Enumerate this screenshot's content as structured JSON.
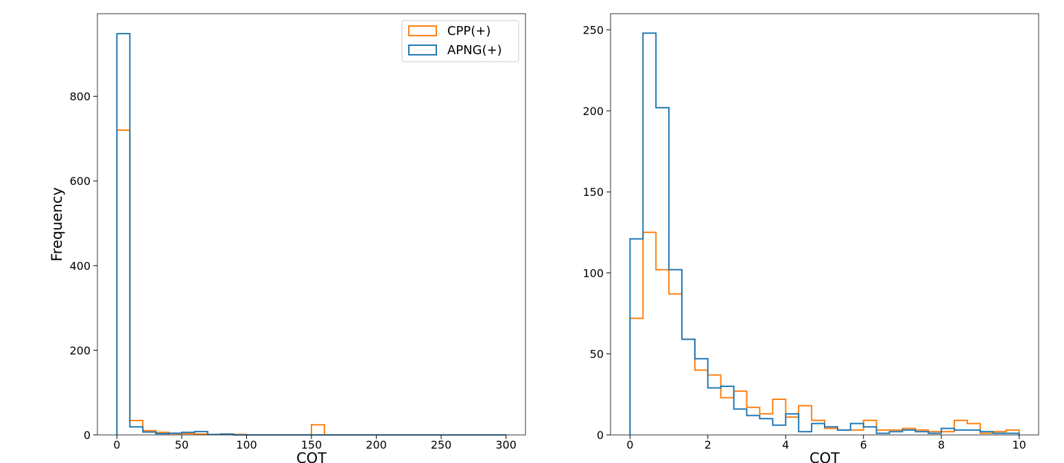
{
  "chart_data": [
    {
      "type": "histogram",
      "xlabel": "COT",
      "ylabel": "Frequency",
      "xlim": [
        -15,
        315
      ],
      "ylim": [
        0,
        995
      ],
      "xticks": [
        0,
        50,
        100,
        150,
        200,
        250,
        300
      ],
      "yticks": [
        0,
        200,
        400,
        600,
        800
      ],
      "bin_edges": [
        0,
        10,
        20,
        30,
        40,
        50,
        60,
        70,
        80,
        90,
        100,
        110,
        120,
        130,
        140,
        150,
        160,
        170,
        180,
        190,
        200,
        210,
        220,
        230,
        240,
        250,
        260,
        270,
        280,
        290,
        300
      ],
      "legend": {
        "position": "upper right",
        "entries": [
          "CPP(+)",
          "APNG(+)"
        ]
      },
      "series": [
        {
          "name": "CPP(+)",
          "color": "#ff7f0e",
          "values": [
            720,
            34,
            10,
            6,
            3,
            3,
            2,
            1,
            2,
            1,
            0,
            0,
            0,
            0,
            0,
            24,
            0,
            0,
            0,
            0,
            0,
            0,
            0,
            0,
            0,
            0,
            0,
            0,
            0,
            0
          ]
        },
        {
          "name": "APNG(+)",
          "color": "#1f77b4",
          "values": [
            948,
            19,
            7,
            3,
            4,
            6,
            8,
            1,
            2,
            0,
            0,
            0,
            0,
            0,
            0,
            0,
            0,
            0,
            0,
            0,
            0,
            0,
            0,
            0,
            0,
            0,
            0,
            0,
            0,
            0
          ]
        }
      ]
    },
    {
      "type": "histogram",
      "xlabel": "COT",
      "ylabel": "",
      "xlim": [
        -0.5,
        10.5
      ],
      "ylim": [
        0,
        260
      ],
      "xticks": [
        0,
        2,
        4,
        6,
        8,
        10
      ],
      "yticks": [
        0,
        50,
        100,
        150,
        200,
        250
      ],
      "bin_edges": [
        0,
        0.333,
        0.667,
        1.0,
        1.333,
        1.667,
        2.0,
        2.333,
        2.667,
        3.0,
        3.333,
        3.667,
        4.0,
        4.333,
        4.667,
        5.0,
        5.333,
        5.667,
        6.0,
        6.333,
        6.667,
        7.0,
        7.333,
        7.667,
        8.0,
        8.333,
        8.667,
        9.0,
        9.333,
        9.667,
        10.0
      ],
      "series": [
        {
          "name": "CPP(+)",
          "color": "#ff7f0e",
          "values": [
            72,
            125,
            102,
            87,
            59,
            40,
            37,
            23,
            27,
            17,
            13,
            22,
            11,
            18,
            9,
            4,
            3,
            3,
            9,
            3,
            3,
            4,
            3,
            2,
            2,
            9,
            7,
            1,
            2,
            3
          ]
        },
        {
          "name": "APNG(+)",
          "color": "#1f77b4",
          "values": [
            121,
            248,
            202,
            102,
            59,
            47,
            29,
            30,
            16,
            12,
            10,
            6,
            13,
            2,
            7,
            5,
            3,
            7,
            5,
            1,
            2,
            3,
            2,
            1,
            4,
            3,
            3,
            2,
            1,
            1
          ]
        }
      ]
    }
  ]
}
